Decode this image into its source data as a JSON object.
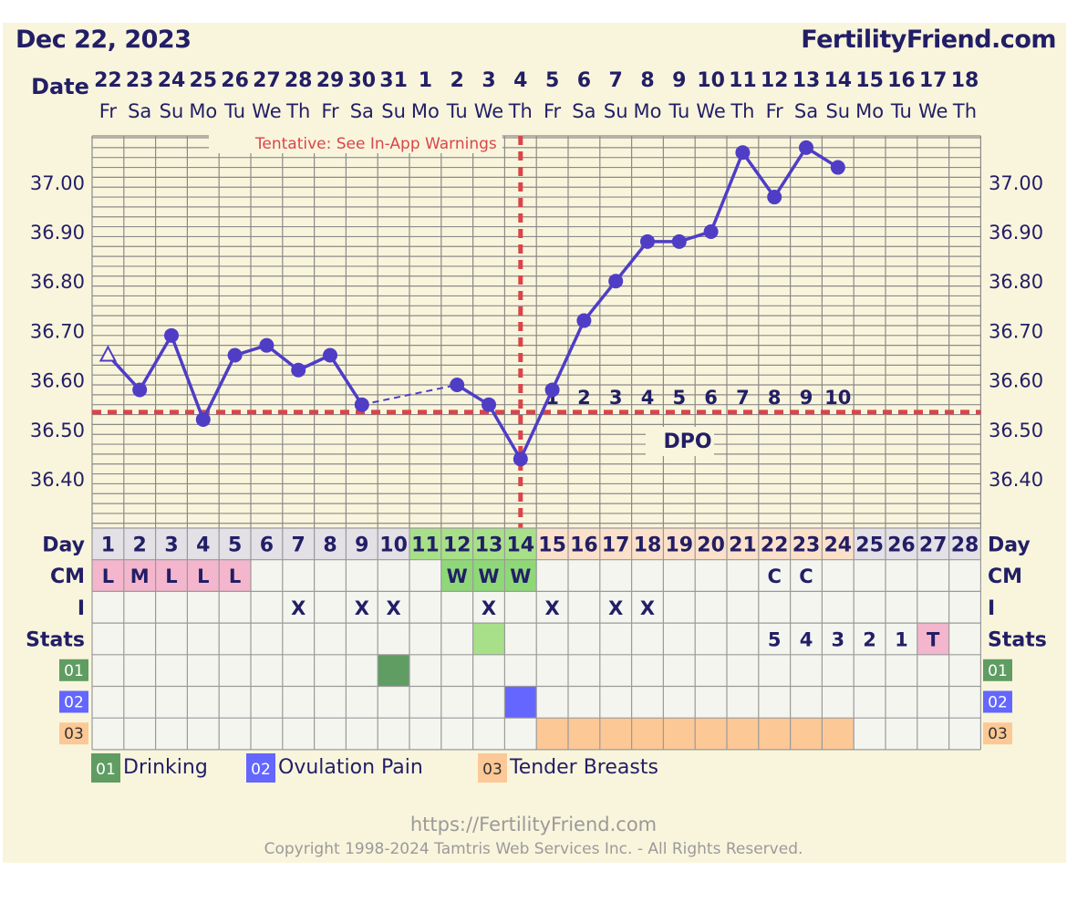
{
  "header": {
    "date": "Dec 22, 2023",
    "brand": "FertilityFriend.com"
  },
  "row_labels": {
    "date": "Date",
    "day": "Day",
    "cm": "CM",
    "intercourse": "I",
    "stats": "Stats"
  },
  "tentative_warning": "Tentative: See In-App Warnings",
  "dpo_label": "DPO",
  "dpo_numbers": [
    "1",
    "2",
    "3",
    "4",
    "5",
    "6",
    "7",
    "8",
    "9",
    "10"
  ],
  "dates": [
    "22",
    "23",
    "24",
    "25",
    "26",
    "27",
    "28",
    "29",
    "30",
    "31",
    "1",
    "2",
    "3",
    "4",
    "5",
    "6",
    "7",
    "8",
    "9",
    "10",
    "11",
    "12",
    "13",
    "14",
    "15",
    "16",
    "17",
    "18"
  ],
  "weekdays": [
    "Fr",
    "Sa",
    "Su",
    "Mo",
    "Tu",
    "We",
    "Th",
    "Fr",
    "Sa",
    "Su",
    "Mo",
    "Tu",
    "We",
    "Th",
    "Fr",
    "Sa",
    "Su",
    "Mo",
    "Tu",
    "We",
    "Th",
    "Fr",
    "Sa",
    "Su",
    "Mo",
    "Tu",
    "We",
    "Th"
  ],
  "cycle_days": [
    "1",
    "2",
    "3",
    "4",
    "5",
    "6",
    "7",
    "8",
    "9",
    "10",
    "11",
    "12",
    "13",
    "14",
    "15",
    "16",
    "17",
    "18",
    "19",
    "20",
    "21",
    "22",
    "23",
    "24",
    "25",
    "26",
    "27",
    "28"
  ],
  "cm": [
    "L",
    "M",
    "L",
    "L",
    "L",
    "",
    "",
    "",
    "",
    "",
    "",
    "W",
    "W",
    "W",
    "",
    "",
    "",
    "",
    "",
    "",
    "",
    "C",
    "C",
    "",
    "",
    "",
    "",
    ""
  ],
  "intercourse": [
    "",
    "",
    "",
    "",
    "",
    "",
    "X",
    "",
    "X",
    "X",
    "",
    "",
    "X",
    "",
    "X",
    "",
    "X",
    "X",
    "",
    "",
    "",
    "",
    "",
    "",
    "",
    "",
    "",
    ""
  ],
  "stats": [
    "",
    "",
    "",
    "",
    "",
    "",
    "",
    "",
    "",
    "",
    "",
    "",
    "",
    "",
    "",
    "",
    "",
    "",
    "",
    "",
    "",
    "5",
    "4",
    "3",
    "2",
    "1",
    "T",
    ""
  ],
  "symptoms": [
    {
      "code": "01",
      "name": "Drinking",
      "color": "#5f9d62",
      "days": [
        10
      ]
    },
    {
      "code": "02",
      "name": "Ovulation Pain",
      "color": "#6466ff",
      "days": [
        14
      ]
    },
    {
      "code": "03",
      "name": "Tender Breasts",
      "color": "#fcc896",
      "days": [
        15,
        16,
        17,
        18,
        19,
        20,
        21,
        22,
        23,
        24
      ]
    }
  ],
  "chart_data": {
    "type": "line",
    "title": "",
    "xlabel": "Day",
    "ylabel": "",
    "x": [
      1,
      2,
      3,
      4,
      5,
      6,
      7,
      8,
      9,
      12,
      13,
      14,
      15,
      16,
      17,
      18,
      19,
      20,
      21,
      22,
      23,
      24
    ],
    "series": [
      {
        "name": "",
        "x": [
          1,
          2,
          3,
          4,
          5,
          6,
          7,
          8,
          9
        ],
        "values": [
          36.65,
          36.58,
          36.69,
          36.52,
          36.65,
          36.67,
          36.62,
          36.65,
          36.55
        ]
      },
      {
        "name": "",
        "x": [
          12,
          13,
          14,
          15,
          16,
          17,
          18,
          19,
          20,
          21,
          22,
          23,
          24
        ],
        "values": [
          36.59,
          36.55,
          36.44,
          36.58,
          36.72,
          36.8,
          36.88,
          36.88,
          36.9,
          37.06,
          36.97,
          37.07,
          37.03
        ]
      }
    ],
    "open_marker_days": [
      1
    ],
    "dashed_segment_days": [
      9,
      12
    ],
    "ylim": [
      36.32,
      37.12
    ],
    "yticks": [
      "36.40",
      "36.50",
      "36.60",
      "36.70",
      "36.80",
      "36.90",
      "37.00"
    ],
    "coverline": 36.535,
    "ovulation_day": 14,
    "grid": true,
    "colors": {
      "line": "#4f3dc6",
      "coverline": "#d9454a",
      "grid": "#8a8a8a",
      "text": "#221e66"
    }
  },
  "footer": {
    "url": "https://FertilityFriend.com",
    "copyright": "Copyright 1998-2024 Tamtris Web Services Inc. - All Rights Reserved."
  }
}
